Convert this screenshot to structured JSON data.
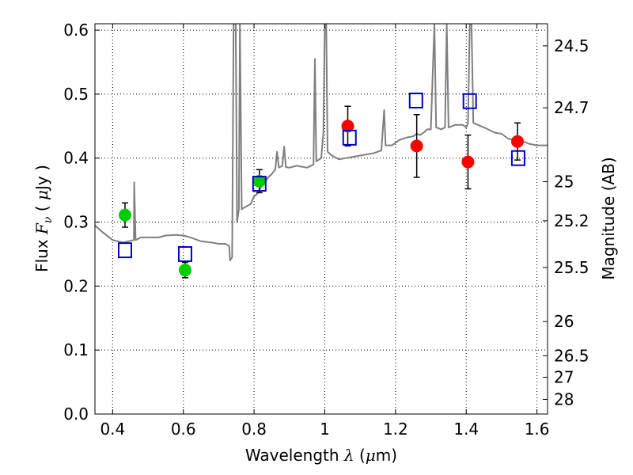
{
  "chart_data": {
    "type": "scatter",
    "xlabel": {
      "prefix": "Wavelength",
      "symbol": "λ",
      "unit_open": "(",
      "unit_mu": "μ",
      "unit_rest": "m)"
    },
    "ylabel": {
      "prefix": "Flux",
      "symbol": "F",
      "sub": "ν",
      "unit_open": "(",
      "unit_mu": "μ",
      "unit_rest": "Jy )"
    },
    "y2label": "Magnitude (AB)",
    "xlim": [
      0.35,
      1.63
    ],
    "ylim": [
      0.0,
      0.61
    ],
    "grid": true,
    "x_ticks": [
      {
        "value": 0.4,
        "label": "0.4"
      },
      {
        "value": 0.6,
        "label": "0.6"
      },
      {
        "value": 0.8,
        "label": "0.8"
      },
      {
        "value": 1.0,
        "label": "1"
      },
      {
        "value": 1.2,
        "label": "1.2"
      },
      {
        "value": 1.4,
        "label": "1.4"
      },
      {
        "value": 1.6,
        "label": "1.6"
      }
    ],
    "y_ticks": [
      {
        "value": 0.0,
        "label": "0.0"
      },
      {
        "value": 0.1,
        "label": "0.1"
      },
      {
        "value": 0.2,
        "label": "0.2"
      },
      {
        "value": 0.3,
        "label": "0.3"
      },
      {
        "value": 0.4,
        "label": "0.4"
      },
      {
        "value": 0.5,
        "label": "0.5"
      },
      {
        "value": 0.6,
        "label": "0.6"
      }
    ],
    "mag_ticks": [
      {
        "value": 24.5,
        "label": "24.5"
      },
      {
        "value": 24.7,
        "label": "24.7"
      },
      {
        "value": 25,
        "label": "25"
      },
      {
        "value": 25.2,
        "label": "25.2"
      },
      {
        "value": 25.5,
        "label": "25.5"
      },
      {
        "value": 26,
        "label": "26"
      },
      {
        "value": 26.5,
        "label": "26.5"
      },
      {
        "value": 27,
        "label": "27"
      },
      {
        "value": 28,
        "label": "28"
      }
    ],
    "series": [
      {
        "kind": "model-spectrum",
        "color": "#7f7f7f",
        "points": [
          [
            0.35,
            0.295
          ],
          [
            0.37,
            0.285
          ],
          [
            0.4,
            0.272
          ],
          [
            0.43,
            0.268
          ],
          [
            0.46,
            0.272
          ],
          [
            0.461,
            0.362
          ],
          [
            0.465,
            0.272
          ],
          [
            0.48,
            0.276
          ],
          [
            0.5,
            0.276
          ],
          [
            0.53,
            0.276
          ],
          [
            0.55,
            0.279
          ],
          [
            0.58,
            0.28
          ],
          [
            0.6,
            0.279
          ],
          [
            0.62,
            0.276
          ],
          [
            0.65,
            0.27
          ],
          [
            0.68,
            0.268
          ],
          [
            0.7,
            0.266
          ],
          [
            0.72,
            0.266
          ],
          [
            0.73,
            0.262
          ],
          [
            0.732,
            0.24
          ],
          [
            0.738,
            0.245
          ],
          [
            0.742,
            0.61
          ],
          [
            0.748,
            0.61
          ],
          [
            0.752,
            0.3
          ],
          [
            0.757,
            0.32
          ],
          [
            0.76,
            0.61
          ],
          [
            0.765,
            0.32
          ],
          [
            0.77,
            0.322
          ],
          [
            0.78,
            0.325
          ],
          [
            0.79,
            0.328
          ],
          [
            0.8,
            0.34
          ],
          [
            0.81,
            0.345
          ],
          [
            0.82,
            0.355
          ],
          [
            0.83,
            0.362
          ],
          [
            0.84,
            0.37
          ],
          [
            0.85,
            0.375
          ],
          [
            0.86,
            0.382
          ],
          [
            0.865,
            0.41
          ],
          [
            0.87,
            0.385
          ],
          [
            0.88,
            0.388
          ],
          [
            0.885,
            0.418
          ],
          [
            0.89,
            0.386
          ],
          [
            0.9,
            0.385
          ],
          [
            0.92,
            0.388
          ],
          [
            0.95,
            0.385
          ],
          [
            0.968,
            0.39
          ],
          [
            0.972,
            0.555
          ],
          [
            0.976,
            0.395
          ],
          [
            0.99,
            0.4
          ],
          [
            0.996,
            0.44
          ],
          [
            1.0,
            0.61
          ],
          [
            1.004,
            0.61
          ],
          [
            1.008,
            0.41
          ],
          [
            1.02,
            0.404
          ],
          [
            1.04,
            0.398
          ],
          [
            1.06,
            0.4
          ],
          [
            1.08,
            0.402
          ],
          [
            1.1,
            0.404
          ],
          [
            1.12,
            0.406
          ],
          [
            1.14,
            0.408
          ],
          [
            1.16,
            0.412
          ],
          [
            1.168,
            0.475
          ],
          [
            1.172,
            0.42
          ],
          [
            1.19,
            0.42
          ],
          [
            1.21,
            0.428
          ],
          [
            1.23,
            0.432
          ],
          [
            1.25,
            0.434
          ],
          [
            1.26,
            0.438
          ],
          [
            1.27,
            0.436
          ],
          [
            1.28,
            0.44
          ],
          [
            1.29,
            0.445
          ],
          [
            1.3,
            0.445
          ],
          [
            1.31,
            0.61
          ],
          [
            1.315,
            0.448
          ],
          [
            1.33,
            0.445
          ],
          [
            1.34,
            0.448
          ],
          [
            1.345,
            0.61
          ],
          [
            1.35,
            0.448
          ],
          [
            1.37,
            0.452
          ],
          [
            1.39,
            0.452
          ],
          [
            1.4,
            0.448
          ],
          [
            1.405,
            0.455
          ],
          [
            1.41,
            0.61
          ],
          [
            1.415,
            0.61
          ],
          [
            1.42,
            0.455
          ],
          [
            1.45,
            0.448
          ],
          [
            1.48,
            0.44
          ],
          [
            1.5,
            0.438
          ],
          [
            1.52,
            0.43
          ],
          [
            1.55,
            0.428
          ],
          [
            1.58,
            0.422
          ],
          [
            1.6,
            0.42
          ],
          [
            1.63,
            0.42
          ]
        ]
      },
      {
        "kind": "green-observed",
        "color": "#00cc00",
        "points": [
          {
            "x": 0.435,
            "y": 0.311,
            "err": 0.019
          },
          {
            "x": 0.605,
            "y": 0.225,
            "err": 0.012
          },
          {
            "x": 0.815,
            "y": 0.364,
            "err": 0.018
          }
        ]
      },
      {
        "kind": "red-observed",
        "color": "#ff0000",
        "points": [
          {
            "x": 1.065,
            "y": 0.45,
            "err": 0.031
          },
          {
            "x": 1.26,
            "y": 0.419,
            "err": 0.049
          },
          {
            "x": 1.405,
            "y": 0.394,
            "err": 0.042
          },
          {
            "x": 1.545,
            "y": 0.426,
            "err": 0.029
          }
        ]
      },
      {
        "kind": "model-photometry",
        "color": "#0000cc",
        "points": [
          {
            "x": 0.435,
            "y": 0.256
          },
          {
            "x": 0.605,
            "y": 0.25
          },
          {
            "x": 0.815,
            "y": 0.36
          },
          {
            "x": 1.07,
            "y": 0.432
          },
          {
            "x": 1.258,
            "y": 0.49
          },
          {
            "x": 1.41,
            "y": 0.489
          },
          {
            "x": 1.547,
            "y": 0.4
          }
        ]
      }
    ]
  }
}
